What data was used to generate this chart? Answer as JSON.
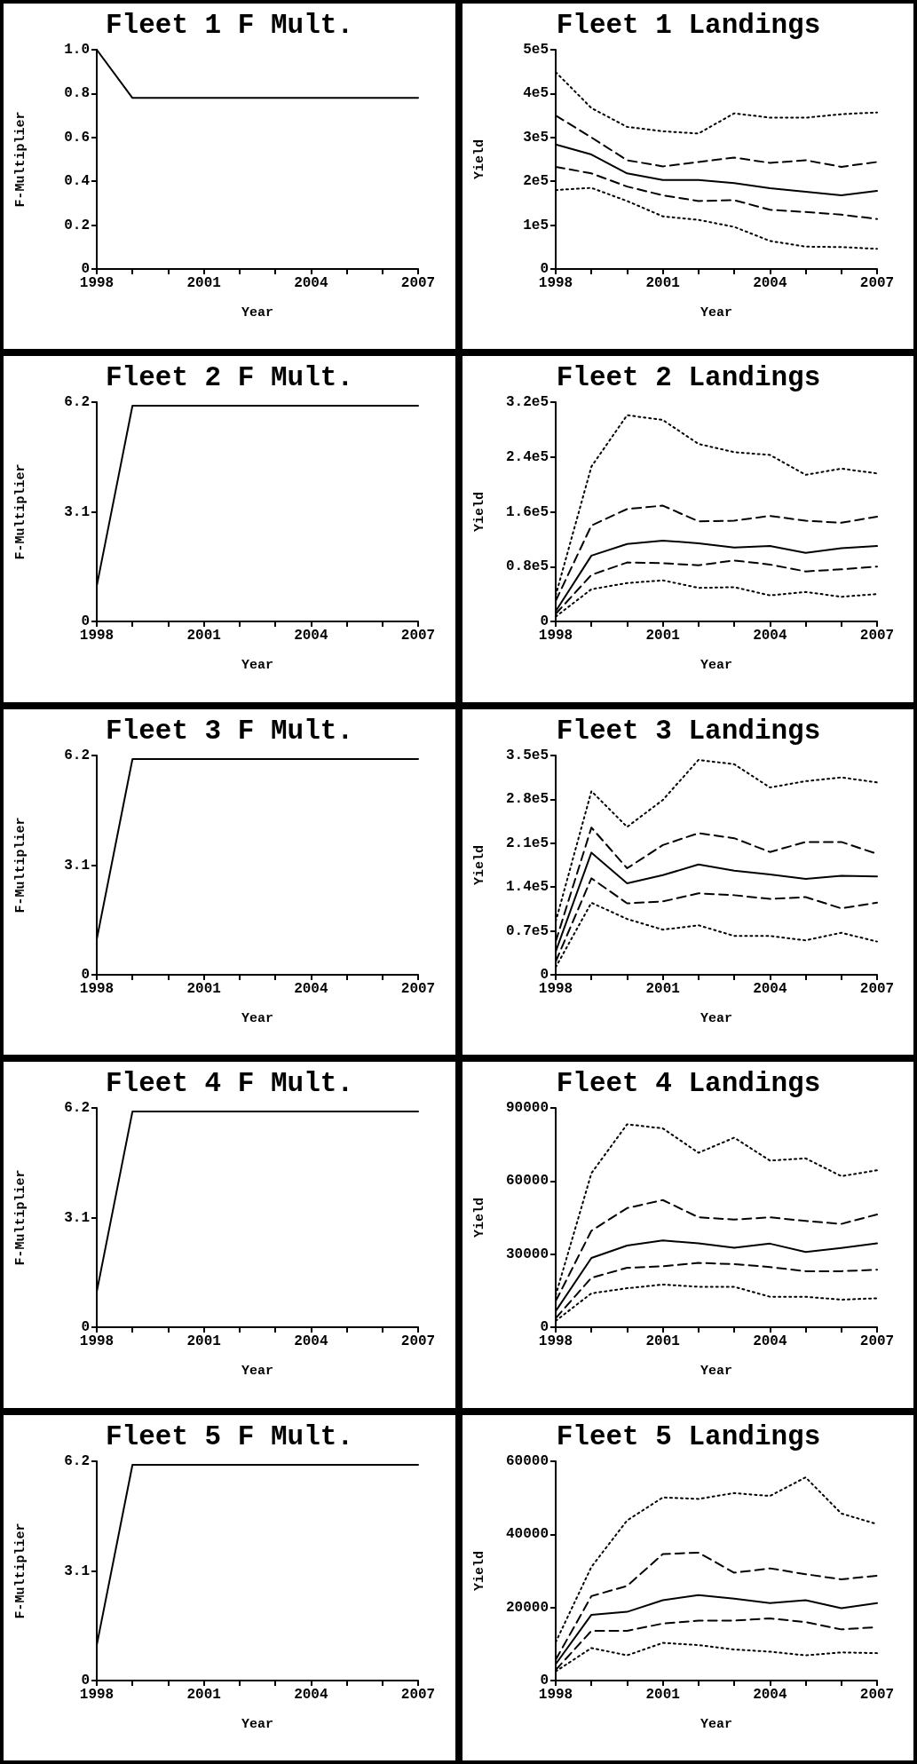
{
  "chart_data": [
    {
      "type": "line",
      "title": "Fleet 1 F Mult.",
      "xlabel": "Year",
      "ylabel": "F-Multiplier",
      "marker": "none",
      "x": [
        1998,
        1999,
        2000,
        2001,
        2002,
        2003,
        2004,
        2005,
        2006,
        2007
      ],
      "xlim": [
        1998,
        2007
      ],
      "xticks": [
        1998,
        {
          "value": 1999,
          "label": null
        },
        {
          "value": 2000,
          "label": null
        },
        2001,
        {
          "value": 2002,
          "label": null
        },
        {
          "value": 2003,
          "label": null
        },
        2004,
        {
          "value": 2005,
          "label": null
        },
        {
          "value": 2006,
          "label": null
        },
        2007
      ],
      "ylim": [
        0,
        1
      ],
      "yticks": [
        0,
        0.2,
        0.4,
        0.6,
        0.8,
        {
          "value": 1,
          "label": "1.0"
        }
      ],
      "series": [
        {
          "color": "#000000",
          "line_style": "solid",
          "values": [
            1.0,
            0.78,
            0.78,
            0.78,
            0.78,
            0.78,
            0.78,
            0.78,
            0.78,
            0.78
          ]
        }
      ]
    },
    {
      "type": "line",
      "title": "Fleet 1 Landings",
      "xlabel": "Year",
      "ylabel": "Yield",
      "marker": "none",
      "x": [
        1998,
        1999,
        2000,
        2001,
        2002,
        2003,
        2004,
        2005,
        2006,
        2007
      ],
      "xlim": [
        1998,
        2007
      ],
      "xticks": [
        1998,
        {
          "value": 1999,
          "label": null
        },
        {
          "value": 2000,
          "label": null
        },
        2001,
        {
          "value": 2002,
          "label": null
        },
        {
          "value": 2003,
          "label": null
        },
        2004,
        {
          "value": 2005,
          "label": null
        },
        {
          "value": 2006,
          "label": null
        },
        2007
      ],
      "ylim": [
        0,
        500000
      ],
      "yticks": [
        0,
        {
          "value": 100000,
          "label": "1e5"
        },
        {
          "value": 200000,
          "label": "2e5"
        },
        {
          "value": 300000,
          "label": "3e5"
        },
        {
          "value": 400000,
          "label": "4e5"
        },
        {
          "value": 500000,
          "label": "5e5"
        }
      ],
      "series": [
        {
          "color": "#000000",
          "line_style": "dotted",
          "values": [
            449000,
            367000,
            324000,
            314000,
            309000,
            355000,
            345000,
            345000,
            353000,
            357000
          ]
        },
        {
          "color": "#000000",
          "line_style": "dashed",
          "values": [
            350000,
            300000,
            248000,
            234000,
            244000,
            254000,
            242000,
            248000,
            233000,
            244000
          ]
        },
        {
          "color": "#000000",
          "line_style": "solid",
          "values": [
            284000,
            261000,
            218000,
            203000,
            203000,
            196000,
            184000,
            176000,
            168000,
            178000
          ]
        },
        {
          "color": "#000000",
          "line_style": "dashed",
          "values": [
            233000,
            218000,
            188000,
            168000,
            155000,
            157000,
            135000,
            130000,
            124000,
            114000
          ]
        },
        {
          "color": "#000000",
          "line_style": "dotted",
          "values": [
            180000,
            185000,
            155000,
            120000,
            112000,
            96000,
            64000,
            51000,
            50000,
            46000
          ]
        }
      ]
    },
    {
      "type": "line",
      "title": "Fleet 2 F Mult.",
      "xlabel": "Year",
      "ylabel": "F-Multiplier",
      "marker": "none",
      "x": [
        1998,
        1999,
        2000,
        2001,
        2002,
        2003,
        2004,
        2005,
        2006,
        2007
      ],
      "xlim": [
        1998,
        2007
      ],
      "xticks": [
        1998,
        {
          "value": 1999,
          "label": null
        },
        {
          "value": 2000,
          "label": null
        },
        2001,
        {
          "value": 2002,
          "label": null
        },
        {
          "value": 2003,
          "label": null
        },
        2004,
        {
          "value": 2005,
          "label": null
        },
        {
          "value": 2006,
          "label": null
        },
        2007
      ],
      "ylim": [
        0,
        6.2
      ],
      "yticks": [
        0,
        3.1,
        6.2
      ],
      "series": [
        {
          "color": "#000000",
          "line_style": "solid",
          "values": [
            1.0,
            6.1,
            6.1,
            6.1,
            6.1,
            6.1,
            6.1,
            6.1,
            6.1,
            6.1
          ]
        }
      ]
    },
    {
      "type": "line",
      "title": "Fleet 2 Landings",
      "xlabel": "Year",
      "ylabel": "Yield",
      "marker": "none",
      "x": [
        1998,
        1999,
        2000,
        2001,
        2002,
        2003,
        2004,
        2005,
        2006,
        2007
      ],
      "xlim": [
        1998,
        2007
      ],
      "xticks": [
        1998,
        {
          "value": 1999,
          "label": null
        },
        {
          "value": 2000,
          "label": null
        },
        2001,
        {
          "value": 2002,
          "label": null
        },
        {
          "value": 2003,
          "label": null
        },
        2004,
        {
          "value": 2005,
          "label": null
        },
        {
          "value": 2006,
          "label": null
        },
        2007
      ],
      "ylim": [
        0,
        320000
      ],
      "yticks": [
        0,
        {
          "value": 80000,
          "label": "0.8e5"
        },
        {
          "value": 160000,
          "label": "1.6e5"
        },
        {
          "value": 240000,
          "label": "2.4e5"
        },
        {
          "value": 320000,
          "label": "3.2e5"
        }
      ],
      "series": [
        {
          "color": "#000000",
          "line_style": "dotted",
          "values": [
            38000,
            226000,
            301000,
            294000,
            259000,
            247000,
            243000,
            214000,
            223000,
            216000
          ]
        },
        {
          "color": "#000000",
          "line_style": "dashed",
          "values": [
            30000,
            140000,
            164000,
            169000,
            146000,
            147000,
            154000,
            147000,
            144000,
            153000
          ]
        },
        {
          "color": "#000000",
          "line_style": "solid",
          "values": [
            15000,
            96000,
            113000,
            118000,
            114000,
            108000,
            110000,
            100000,
            107000,
            110000
          ]
        },
        {
          "color": "#000000",
          "line_style": "dashed",
          "values": [
            11000,
            68000,
            86000,
            85000,
            82000,
            89000,
            83000,
            73000,
            76000,
            80000
          ]
        },
        {
          "color": "#000000",
          "line_style": "dotted",
          "values": [
            7000,
            47000,
            56000,
            60000,
            49000,
            50000,
            38000,
            43000,
            36000,
            40000
          ]
        }
      ]
    },
    {
      "type": "line",
      "title": "Fleet 3 F Mult.",
      "xlabel": "Year",
      "ylabel": "F-Multiplier",
      "marker": "none",
      "x": [
        1998,
        1999,
        2000,
        2001,
        2002,
        2003,
        2004,
        2005,
        2006,
        2007
      ],
      "xlim": [
        1998,
        2007
      ],
      "xticks": [
        1998,
        {
          "value": 1999,
          "label": null
        },
        {
          "value": 2000,
          "label": null
        },
        2001,
        {
          "value": 2002,
          "label": null
        },
        {
          "value": 2003,
          "label": null
        },
        2004,
        {
          "value": 2005,
          "label": null
        },
        {
          "value": 2006,
          "label": null
        },
        2007
      ],
      "ylim": [
        0,
        6.2
      ],
      "yticks": [
        0,
        3.1,
        6.2
      ],
      "series": [
        {
          "color": "#000000",
          "line_style": "solid",
          "values": [
            1.0,
            6.1,
            6.1,
            6.1,
            6.1,
            6.1,
            6.1,
            6.1,
            6.1,
            6.1
          ]
        }
      ]
    },
    {
      "type": "line",
      "title": "Fleet 3 Landings",
      "xlabel": "Year",
      "ylabel": "Yield",
      "marker": "none",
      "x": [
        1998,
        1999,
        2000,
        2001,
        2002,
        2003,
        2004,
        2005,
        2006,
        2007
      ],
      "xlim": [
        1998,
        2007
      ],
      "xticks": [
        1998,
        {
          "value": 1999,
          "label": null
        },
        {
          "value": 2000,
          "label": null
        },
        2001,
        {
          "value": 2002,
          "label": null
        },
        {
          "value": 2003,
          "label": null
        },
        2004,
        {
          "value": 2005,
          "label": null
        },
        {
          "value": 2006,
          "label": null
        },
        2007
      ],
      "ylim": [
        0,
        350000
      ],
      "yticks": [
        0,
        {
          "value": 70000,
          "label": "0.7e5"
        },
        {
          "value": 140000,
          "label": "1.4e5"
        },
        {
          "value": 210000,
          "label": "2.1e5"
        },
        {
          "value": 280000,
          "label": "2.8e5"
        },
        {
          "value": 350000,
          "label": "3.5e5"
        }
      ],
      "series": [
        {
          "color": "#000000",
          "line_style": "dotted",
          "values": [
            85000,
            293000,
            236000,
            279000,
            343000,
            336000,
            299000,
            309000,
            315000,
            307000
          ]
        },
        {
          "color": "#000000",
          "line_style": "dashed",
          "values": [
            53000,
            235000,
            170000,
            207000,
            226000,
            218000,
            196000,
            212000,
            212000,
            193000
          ]
        },
        {
          "color": "#000000",
          "line_style": "solid",
          "values": [
            37000,
            195000,
            146000,
            159000,
            176000,
            166000,
            160000,
            153000,
            158000,
            157000
          ]
        },
        {
          "color": "#000000",
          "line_style": "dashed",
          "values": [
            21000,
            154000,
            114000,
            117000,
            130000,
            127000,
            121000,
            124000,
            106000,
            115000
          ]
        },
        {
          "color": "#000000",
          "line_style": "dotted",
          "values": [
            12000,
            115000,
            89000,
            72000,
            79000,
            62000,
            62000,
            55000,
            67000,
            53000
          ]
        }
      ]
    },
    {
      "type": "line",
      "title": "Fleet 4 F Mult.",
      "xlabel": "Year",
      "ylabel": "F-Multiplier",
      "marker": "none",
      "x": [
        1998,
        1999,
        2000,
        2001,
        2002,
        2003,
        2004,
        2005,
        2006,
        2007
      ],
      "xlim": [
        1998,
        2007
      ],
      "xticks": [
        1998,
        {
          "value": 1999,
          "label": null
        },
        {
          "value": 2000,
          "label": null
        },
        2001,
        {
          "value": 2002,
          "label": null
        },
        {
          "value": 2003,
          "label": null
        },
        2004,
        {
          "value": 2005,
          "label": null
        },
        {
          "value": 2006,
          "label": null
        },
        2007
      ],
      "ylim": [
        0,
        6.2
      ],
      "yticks": [
        0,
        3.1,
        6.2
      ],
      "series": [
        {
          "color": "#000000",
          "line_style": "solid",
          "values": [
            1.0,
            6.1,
            6.1,
            6.1,
            6.1,
            6.1,
            6.1,
            6.1,
            6.1,
            6.1
          ]
        }
      ]
    },
    {
      "type": "line",
      "title": "Fleet 4 Landings",
      "xlabel": "Year",
      "ylabel": "Yield",
      "marker": "none",
      "x": [
        1998,
        1999,
        2000,
        2001,
        2002,
        2003,
        2004,
        2005,
        2006,
        2007
      ],
      "xlim": [
        1998,
        2007
      ],
      "xticks": [
        1998,
        {
          "value": 1999,
          "label": null
        },
        {
          "value": 2000,
          "label": null
        },
        2001,
        {
          "value": 2002,
          "label": null
        },
        {
          "value": 2003,
          "label": null
        },
        2004,
        {
          "value": 2005,
          "label": null
        },
        {
          "value": 2006,
          "label": null
        },
        2007
      ],
      "ylim": [
        0,
        90000
      ],
      "yticks": [
        0,
        30000,
        60000,
        90000
      ],
      "series": [
        {
          "color": "#000000",
          "line_style": "dotted",
          "values": [
            13100,
            63200,
            83300,
            81600,
            71600,
            77800,
            68400,
            69300,
            62000,
            64400
          ]
        },
        {
          "color": "#000000",
          "line_style": "dashed",
          "values": [
            10700,
            39600,
            48900,
            52200,
            45100,
            44200,
            45100,
            43600,
            42400,
            46300
          ]
        },
        {
          "color": "#000000",
          "line_style": "solid",
          "values": [
            6600,
            28400,
            33500,
            35600,
            34400,
            32600,
            34300,
            30900,
            32500,
            34400
          ]
        },
        {
          "color": "#000000",
          "line_style": "dashed",
          "values": [
            3700,
            20300,
            24400,
            25000,
            26400,
            25900,
            24700,
            23000,
            23000,
            23600
          ]
        },
        {
          "color": "#000000",
          "line_style": "dotted",
          "values": [
            2600,
            13900,
            16000,
            17500,
            16600,
            16600,
            12500,
            12500,
            11300,
            11900
          ]
        }
      ]
    },
    {
      "type": "line",
      "title": "Fleet 5 F Mult.",
      "xlabel": "Year",
      "ylabel": "F-Multiplier",
      "marker": "none",
      "x": [
        1998,
        1999,
        2000,
        2001,
        2002,
        2003,
        2004,
        2005,
        2006,
        2007
      ],
      "xlim": [
        1998,
        2007
      ],
      "xticks": [
        1998,
        {
          "value": 1999,
          "label": null
        },
        {
          "value": 2000,
          "label": null
        },
        2001,
        {
          "value": 2002,
          "label": null
        },
        {
          "value": 2003,
          "label": null
        },
        2004,
        {
          "value": 2005,
          "label": null
        },
        {
          "value": 2006,
          "label": null
        },
        2007
      ],
      "ylim": [
        0,
        6.2
      ],
      "yticks": [
        0,
        3.1,
        6.2
      ],
      "series": [
        {
          "color": "#000000",
          "line_style": "solid",
          "values": [
            1.0,
            6.1,
            6.1,
            6.1,
            6.1,
            6.1,
            6.1,
            6.1,
            6.1,
            6.1
          ]
        }
      ]
    },
    {
      "type": "line",
      "title": "Fleet 5 Landings",
      "xlabel": "Year",
      "ylabel": "Yield",
      "marker": "none",
      "x": [
        1998,
        1999,
        2000,
        2001,
        2002,
        2003,
        2004,
        2005,
        2006,
        2007
      ],
      "xlim": [
        1998,
        2007
      ],
      "xticks": [
        1998,
        {
          "value": 1999,
          "label": null
        },
        {
          "value": 2000,
          "label": null
        },
        2001,
        {
          "value": 2002,
          "label": null
        },
        {
          "value": 2003,
          "label": null
        },
        2004,
        {
          "value": 2005,
          "label": null
        },
        {
          "value": 2006,
          "label": null
        },
        2007
      ],
      "ylim": [
        0,
        60000
      ],
      "yticks": [
        0,
        20000,
        40000,
        60000
      ],
      "series": [
        {
          "color": "#000000",
          "line_style": "dotted",
          "values": [
            10500,
            31100,
            43800,
            50100,
            49700,
            51300,
            50500,
            55600,
            45700,
            42800
          ]
        },
        {
          "color": "#000000",
          "line_style": "dashed",
          "values": [
            5700,
            23100,
            25900,
            34600,
            35000,
            29500,
            30700,
            29100,
            27700,
            28700
          ]
        },
        {
          "color": "#000000",
          "line_style": "solid",
          "values": [
            4500,
            18000,
            18800,
            22000,
            23400,
            22400,
            21200,
            22000,
            19800,
            21200
          ]
        },
        {
          "color": "#000000",
          "line_style": "dashed",
          "values": [
            2900,
            13600,
            13600,
            15600,
            16400,
            16400,
            17000,
            16000,
            14000,
            14600
          ]
        },
        {
          "color": "#000000",
          "line_style": "dotted",
          "values": [
            2500,
            8900,
            6900,
            10300,
            9700,
            8500,
            7900,
            6900,
            7700,
            7500
          ]
        }
      ]
    }
  ]
}
